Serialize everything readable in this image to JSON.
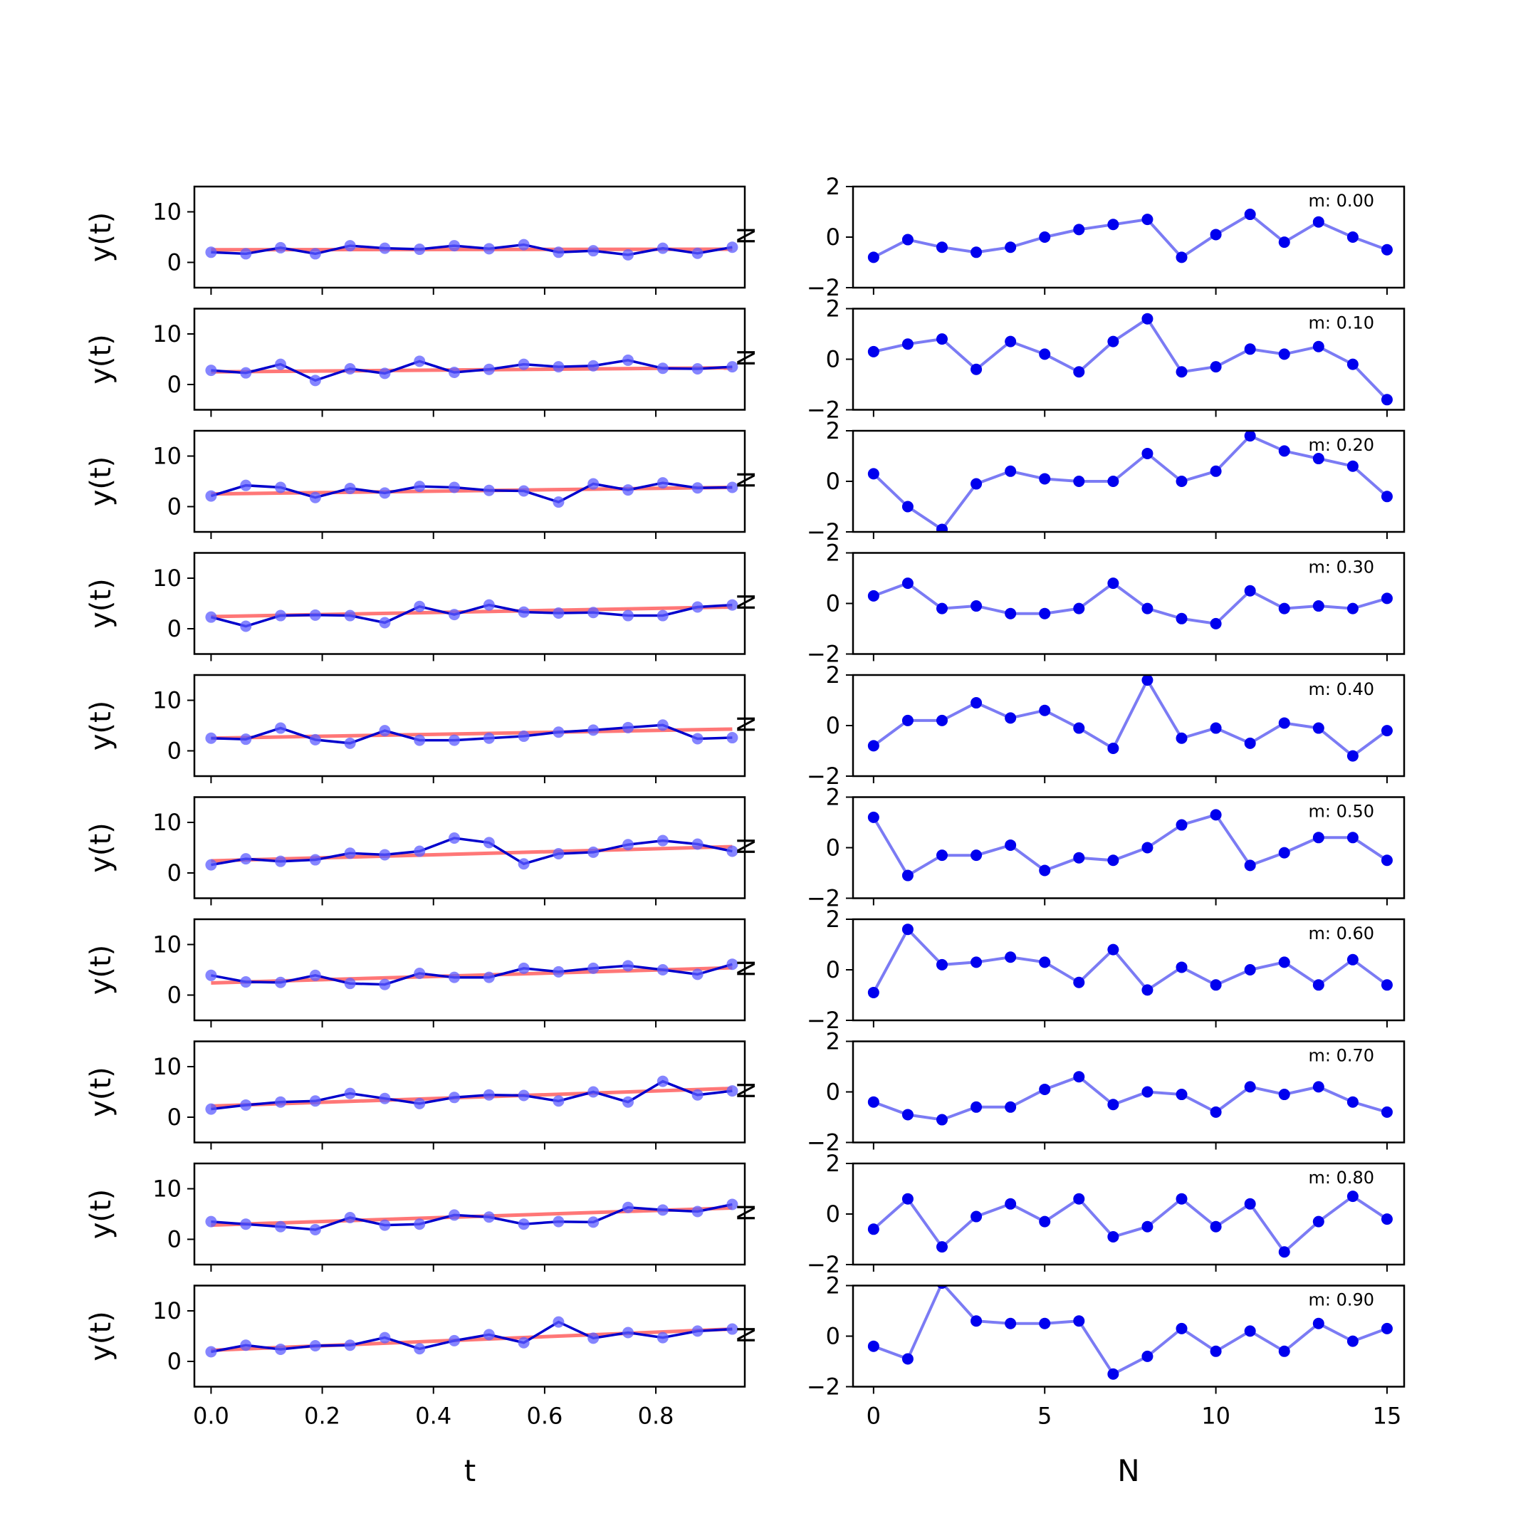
{
  "chart_data": {
    "type": "line",
    "x_t": [
      0.0,
      0.0625,
      0.125,
      0.1875,
      0.25,
      0.3125,
      0.375,
      0.4375,
      0.5,
      0.5625,
      0.625,
      0.6875,
      0.75,
      0.8125,
      0.875,
      0.9375
    ],
    "x_N": [
      0,
      1,
      2,
      3,
      4,
      5,
      6,
      7,
      8,
      9,
      10,
      11,
      12,
      13,
      14,
      15
    ],
    "left": {
      "ylabel": "y(t)",
      "xlabel": "t",
      "ylim": [
        -5,
        15
      ],
      "xlim": [
        -0.03,
        0.96
      ],
      "yticks": [
        0,
        10
      ],
      "xticks": [
        0.0,
        0.2,
        0.4,
        0.6,
        0.8
      ],
      "xtick_labels": [
        "0.0",
        "0.2",
        "0.4",
        "0.6",
        "0.8"
      ],
      "colors": {
        "data": "#0000cc",
        "points": "#5c5cff",
        "fit": "#ff5555"
      }
    },
    "right": {
      "xlabel": "N",
      "ylabel_fragment": "N",
      "ylim": [
        -2,
        2
      ],
      "xlim": [
        -0.6,
        15.5
      ],
      "yticks": [
        -2,
        0,
        2
      ],
      "ytick_labels": [
        "−2",
        "0",
        "2"
      ],
      "xticks": [
        0,
        5,
        10,
        15
      ],
      "xtick_labels": [
        "0",
        "5",
        "10",
        "15"
      ],
      "colors": {
        "line": "#7b7bf4",
        "points": "#0000ee"
      }
    },
    "rows": [
      {
        "m": 0.0,
        "label": "m: 0.00",
        "y": [
          2.0,
          1.7,
          2.9,
          1.7,
          3.3,
          2.8,
          2.6,
          3.3,
          2.7,
          3.5,
          2.0,
          2.3,
          1.5,
          2.8,
          1.8,
          3.0
        ],
        "fit": [
          2.5,
          2.6
        ],
        "noise": [
          -0.8,
          -0.1,
          -0.4,
          -0.6,
          -0.4,
          0.0,
          0.3,
          0.5,
          0.7,
          -0.8,
          0.1,
          0.9,
          -0.2,
          0.6,
          0.0,
          -0.5
        ]
      },
      {
        "m": 0.1,
        "label": "m: 0.10",
        "y": [
          2.8,
          2.3,
          4.0,
          0.8,
          3.1,
          2.2,
          4.6,
          2.4,
          3.0,
          4.0,
          3.5,
          3.7,
          4.8,
          3.2,
          3.1,
          3.5
        ],
        "fit": [
          2.5,
          3.3
        ],
        "noise": [
          0.3,
          0.6,
          0.8,
          -0.4,
          0.7,
          0.2,
          -0.5,
          0.7,
          1.6,
          -0.5,
          -0.3,
          0.4,
          0.2,
          0.5,
          -0.2,
          -1.6
        ]
      },
      {
        "m": 0.2,
        "label": "m: 0.20",
        "y": [
          2.1,
          4.2,
          3.8,
          1.8,
          3.6,
          2.7,
          4.0,
          3.8,
          3.2,
          3.1,
          0.9,
          4.5,
          3.3,
          4.7,
          3.7,
          3.8
        ],
        "fit": [
          2.5,
          3.8
        ],
        "noise": [
          0.3,
          -1.0,
          -1.9,
          -0.1,
          0.4,
          0.1,
          0.0,
          0.0,
          1.1,
          0.0,
          0.4,
          1.8,
          1.2,
          0.9,
          0.6,
          -0.6
        ]
      },
      {
        "m": 0.3,
        "label": "m: 0.30",
        "y": [
          2.3,
          0.5,
          2.6,
          2.7,
          2.6,
          1.2,
          4.4,
          2.8,
          4.7,
          3.3,
          3.1,
          3.2,
          2.6,
          2.6,
          4.3,
          4.7
        ],
        "fit": [
          2.4,
          4.3
        ],
        "noise": [
          0.3,
          0.8,
          -0.2,
          -0.1,
          -0.4,
          -0.4,
          -0.2,
          0.8,
          -0.2,
          -0.6,
          -0.8,
          0.5,
          -0.2,
          -0.1,
          -0.2,
          0.2
        ]
      },
      {
        "m": 0.4,
        "label": "m: 0.40",
        "y": [
          2.5,
          2.3,
          4.5,
          2.2,
          1.5,
          4.0,
          2.1,
          2.1,
          2.5,
          2.9,
          3.7,
          4.1,
          4.6,
          5.1,
          2.4,
          2.6
        ],
        "fit": [
          2.5,
          4.3
        ],
        "noise": [
          -0.8,
          0.2,
          0.2,
          0.9,
          0.3,
          0.6,
          -0.1,
          -0.9,
          1.8,
          -0.5,
          -0.1,
          -0.7,
          0.1,
          -0.1,
          -1.2,
          -0.2
        ]
      },
      {
        "m": 0.5,
        "label": "m: 0.50",
        "y": [
          1.6,
          2.8,
          2.3,
          2.6,
          3.9,
          3.6,
          4.3,
          6.9,
          6.0,
          1.8,
          3.8,
          4.1,
          5.6,
          6.4,
          5.7,
          4.3
        ],
        "fit": [
          2.4,
          5.2
        ],
        "noise": [
          1.2,
          -1.1,
          -0.3,
          -0.3,
          0.1,
          -0.9,
          -0.4,
          -0.5,
          0.0,
          0.9,
          1.3,
          -0.7,
          -0.2,
          0.4,
          0.4,
          -0.5
        ]
      },
      {
        "m": 0.6,
        "label": "m: 0.60",
        "y": [
          3.9,
          2.6,
          2.5,
          3.9,
          2.3,
          2.1,
          4.3,
          3.5,
          3.5,
          5.3,
          4.6,
          5.3,
          5.8,
          5.0,
          4.1,
          6.1
        ],
        "fit": [
          2.4,
          5.4
        ],
        "noise": [
          -0.9,
          1.6,
          0.2,
          0.3,
          0.5,
          0.3,
          -0.5,
          0.8,
          -0.8,
          0.1,
          -0.6,
          0.0,
          0.3,
          -0.6,
          0.4,
          -0.6
        ]
      },
      {
        "m": 0.7,
        "label": "m: 0.70",
        "y": [
          1.6,
          2.4,
          3.0,
          3.2,
          4.7,
          3.7,
          2.7,
          3.9,
          4.4,
          4.3,
          3.2,
          5.0,
          3.0,
          7.1,
          4.4,
          5.2
        ],
        "fit": [
          2.2,
          5.7
        ],
        "noise": [
          -0.4,
          -0.9,
          -1.1,
          -0.6,
          -0.6,
          0.1,
          0.6,
          -0.5,
          0.0,
          -0.1,
          -0.8,
          0.2,
          -0.1,
          0.2,
          -0.4,
          -0.8
        ]
      },
      {
        "m": 0.8,
        "label": "m: 0.80",
        "y": [
          3.5,
          3.0,
          2.5,
          1.9,
          4.3,
          2.8,
          3.0,
          4.8,
          4.4,
          3.0,
          3.5,
          3.4,
          6.3,
          5.8,
          5.5,
          6.9
        ],
        "fit": [
          2.8,
          6.2
        ],
        "noise": [
          -0.6,
          0.6,
          -1.3,
          -0.1,
          0.4,
          -0.3,
          0.6,
          -0.9,
          -0.5,
          0.6,
          -0.5,
          0.4,
          -1.5,
          -0.3,
          0.7,
          -0.2
        ]
      },
      {
        "m": 0.9,
        "label": "m: 0.90",
        "y": [
          1.9,
          3.2,
          2.4,
          3.1,
          3.2,
          4.7,
          2.5,
          4.1,
          5.3,
          3.7,
          7.8,
          4.6,
          5.7,
          4.7,
          6.0,
          6.4
        ],
        "fit": [
          2.2,
          6.4
        ],
        "noise": [
          -0.4,
          -0.9,
          2.1,
          0.6,
          0.5,
          0.5,
          0.6,
          -1.5,
          -0.8,
          0.3,
          -0.6,
          0.2,
          -0.6,
          0.5,
          -0.2,
          0.3
        ]
      }
    ]
  }
}
